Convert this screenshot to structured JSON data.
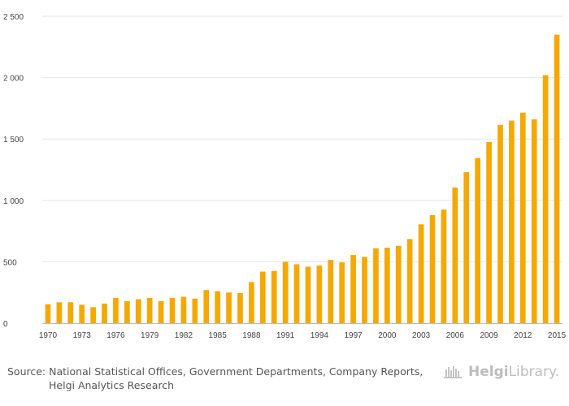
{
  "chart_data": {
    "type": "bar",
    "title": "",
    "xlabel": "",
    "ylabel": "",
    "ylim": [
      0,
      2500
    ],
    "yticks": [
      0,
      500,
      1000,
      1500,
      2000,
      2500
    ],
    "ytick_labels": [
      "0",
      "500",
      "1 000",
      "1 500",
      "2 000",
      "2 500"
    ],
    "xtick_labels": [
      "1970",
      "1973",
      "1976",
      "1979",
      "1982",
      "1985",
      "1988",
      "1991",
      "1994",
      "1997",
      "2000",
      "2003",
      "2006",
      "2009",
      "2012",
      "2015"
    ],
    "grid": true,
    "bar_color": "#F5A800",
    "categories": [
      "1970",
      "1971",
      "1972",
      "1973",
      "1974",
      "1975",
      "1976",
      "1977",
      "1978",
      "1979",
      "1980",
      "1981",
      "1982",
      "1983",
      "1984",
      "1985",
      "1986",
      "1987",
      "1988",
      "1989",
      "1990",
      "1991",
      "1992",
      "1993",
      "1994",
      "1995",
      "1996",
      "1997",
      "1998",
      "1999",
      "2000",
      "2001",
      "2002",
      "2003",
      "2004",
      "2005",
      "2006",
      "2007",
      "2008",
      "2009",
      "2010",
      "2011",
      "2012",
      "2013",
      "2014",
      "2015"
    ],
    "values": [
      155,
      170,
      170,
      150,
      130,
      160,
      205,
      180,
      195,
      205,
      180,
      205,
      215,
      200,
      270,
      260,
      250,
      245,
      335,
      420,
      425,
      500,
      480,
      460,
      470,
      515,
      495,
      555,
      540,
      610,
      615,
      630,
      685,
      805,
      880,
      925,
      1105,
      1230,
      1345,
      1475,
      1615,
      1650,
      1715,
      1660,
      2020,
      2350
    ]
  },
  "source": {
    "prefix": "Source:",
    "line1": "National Statistical Offices, Government Departments, Company Reports,",
    "line2": "Helgi Analytics Research"
  },
  "logo": {
    "icon": "helgi-library-logo-icon",
    "part1": "Helgi",
    "part2": "Library."
  }
}
